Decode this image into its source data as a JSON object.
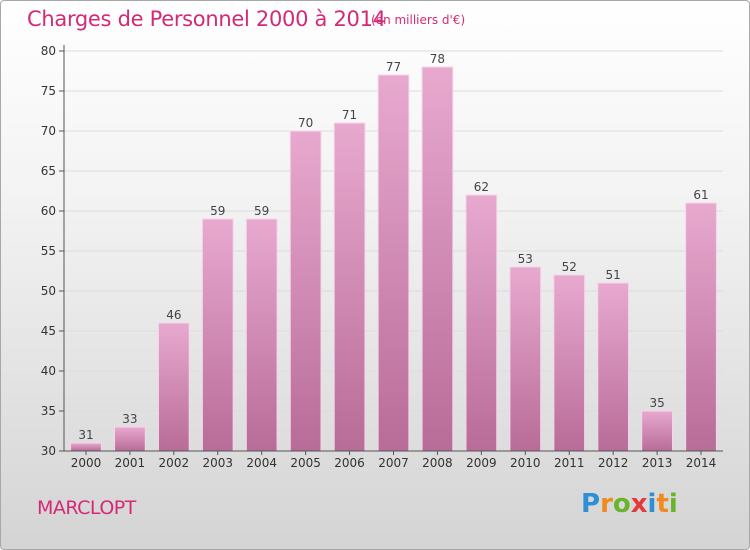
{
  "header": {
    "title": "Charges de Personnel 2000 à 2014",
    "subtitle": "(en milliers d'€)"
  },
  "footer": {
    "commune": "MARCLOPT",
    "logo_text": "Proxiti",
    "logo_colors": [
      "#2f8fd4",
      "#f08a1c",
      "#6ab42d",
      "#e23b3b",
      "#2f8fd4",
      "#f08a1c",
      "#6ab42d"
    ]
  },
  "colors": {
    "accent": "#d42a76",
    "bar_top": "#e8a9cf",
    "bar_bottom": "#b86c98"
  },
  "chart_data": {
    "type": "bar",
    "title": "Charges de Personnel 2000 à 2014",
    "subtitle": "(en milliers d'€)",
    "categories": [
      "2000",
      "2001",
      "2002",
      "2003",
      "2004",
      "2005",
      "2006",
      "2007",
      "2008",
      "2009",
      "2010",
      "2011",
      "2012",
      "2013",
      "2014"
    ],
    "values": [
      31,
      33,
      46,
      59,
      59,
      70,
      71,
      77,
      78,
      62,
      53,
      52,
      51,
      35,
      61
    ],
    "ylim": [
      30,
      80
    ],
    "yticks": [
      30,
      35,
      40,
      45,
      50,
      55,
      60,
      65,
      70,
      75,
      80
    ],
    "grid": true,
    "legend": "none"
  }
}
